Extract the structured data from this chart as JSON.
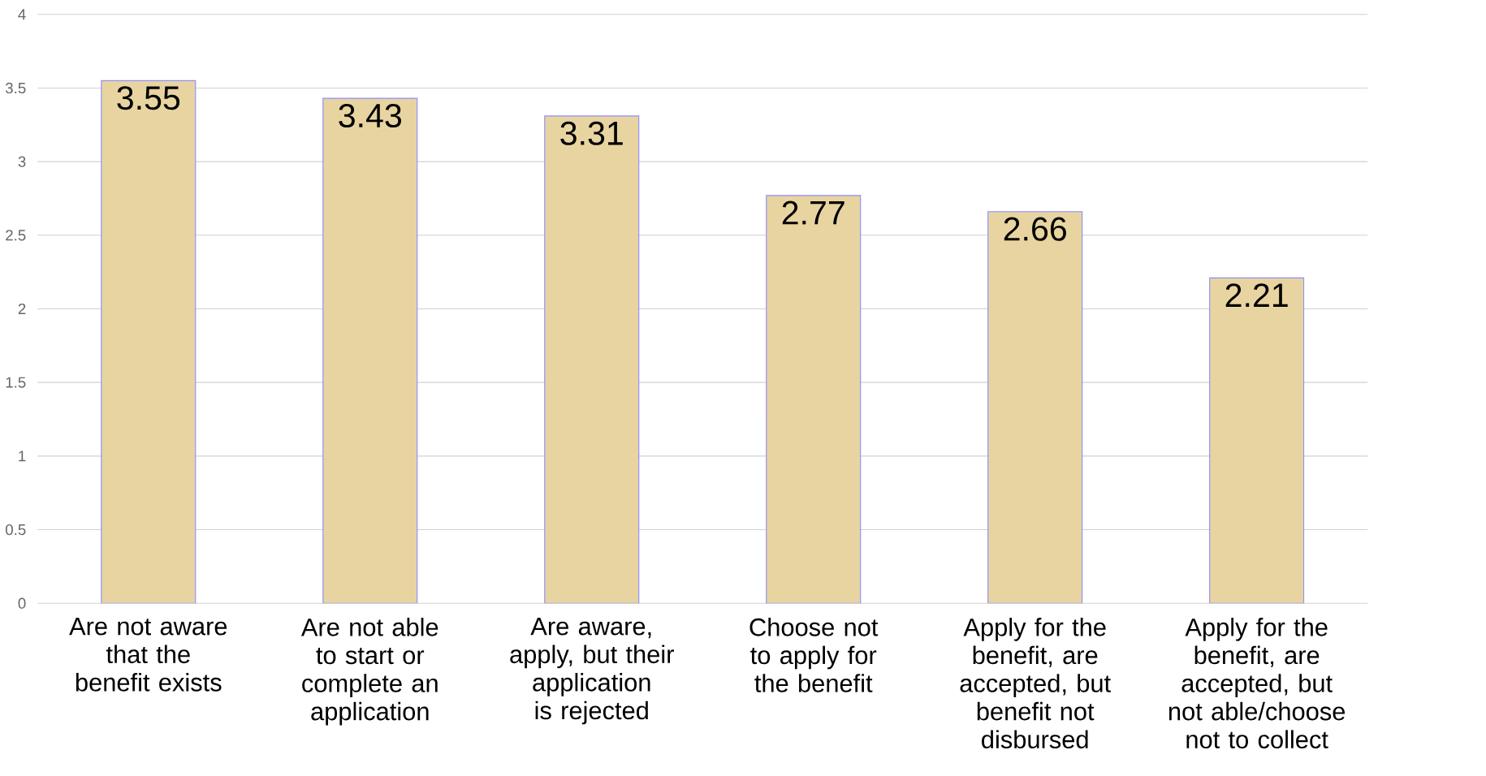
{
  "chart_data": {
    "type": "bar",
    "categories": [
      "Are not aware that the benefit exists",
      "Are not able to start or complete an application",
      "Are aware, apply, but their application is rejected",
      "Choose not to apply for the benefit",
      "Apply for the benefit, are accepted, but benefit not disbursed",
      "Apply for the benefit, are accepted, but not able/choose not to collect"
    ],
    "values": [
      3.55,
      3.43,
      3.31,
      2.77,
      2.66,
      2.21
    ],
    "color": "#e8d4a0",
    "ylim": [
      0,
      4
    ],
    "yticks": [
      0,
      0.5,
      1,
      1.5,
      2,
      2.5,
      3,
      3.5,
      4
    ],
    "grid": "y",
    "data_labels": true
  }
}
